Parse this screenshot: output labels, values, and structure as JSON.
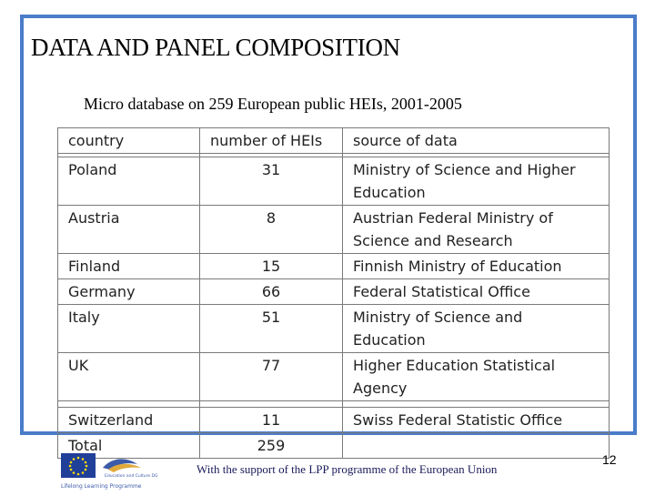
{
  "slide": {
    "title": "DATA AND PANEL COMPOSITION",
    "subtitle": "Micro database on 259 European public HEIs, 2001-2005",
    "footer": "With the support of the LPP programme of the European Union",
    "page_number": "12"
  },
  "table": {
    "headers": [
      "country",
      "number of HEIs",
      "source of data"
    ],
    "rows": [
      {
        "country": "Poland",
        "count": "31",
        "source": "Ministry of Science and Higher Education"
      },
      {
        "country": "Austria",
        "count": "8",
        "source": "Austrian Federal Ministry of Science and Research"
      },
      {
        "country": "Finland",
        "count": "15",
        "source": "Finnish Ministry of Education"
      },
      {
        "country": "Germany",
        "count": "66",
        "source": "Federal Statistical Office"
      },
      {
        "country": "Italy",
        "count": "51",
        "source": "Ministry of Science and Education"
      },
      {
        "country": "UK",
        "count": "77",
        "source": "Higher Education Statistical Agency"
      },
      {
        "country": "Switzerland",
        "count": "11",
        "source": "Swiss Federal Statistic Office"
      },
      {
        "country": "Total",
        "count": "259",
        "source": ""
      }
    ]
  },
  "logos": {
    "eu_flag": "eu-flag-icon",
    "llp_bird": "llp-bird-icon",
    "caption_right": "Education and Culture DG",
    "caption_bottom": "Lifelong Learning Programme"
  },
  "colors": {
    "frame": "#4a7cc9",
    "eu_blue": "#1f3f99",
    "eu_star": "#ffdd00"
  }
}
